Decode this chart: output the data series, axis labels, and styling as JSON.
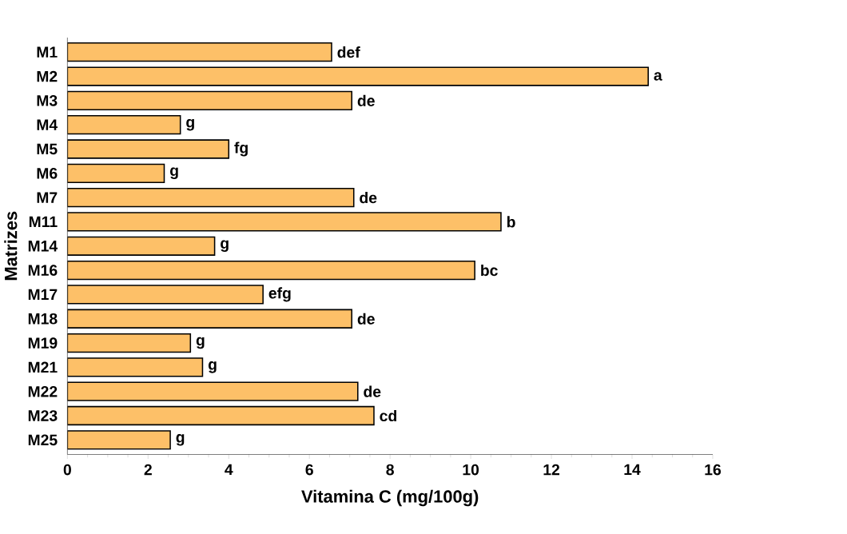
{
  "chart_data": {
    "type": "bar",
    "orientation": "horizontal",
    "xlabel": "Vitamina C (mg/100g)",
    "ylabel": "Matrizes",
    "categories": [
      "M1",
      "M2",
      "M3",
      "M4",
      "M5",
      "M6",
      "M7",
      "M11",
      "M14",
      "M16",
      "M17",
      "M18",
      "M19",
      "M21",
      "M22",
      "M23",
      "M25"
    ],
    "values": [
      6.55,
      14.4,
      7.05,
      2.8,
      4.0,
      2.4,
      7.1,
      10.75,
      3.65,
      10.1,
      4.85,
      7.05,
      3.05,
      3.35,
      7.2,
      7.6,
      2.55
    ],
    "value_labels": [
      "def",
      "a",
      "de",
      "g",
      "fg",
      "g",
      "de",
      "b",
      "g",
      "bc",
      "efg",
      "de",
      "g",
      "g",
      "de",
      "cd",
      "g"
    ],
    "color": "#fdc068",
    "xlim": [
      0,
      16
    ],
    "xticks": [
      0,
      2,
      4,
      6,
      8,
      10,
      12,
      14,
      16
    ],
    "grid": false
  }
}
